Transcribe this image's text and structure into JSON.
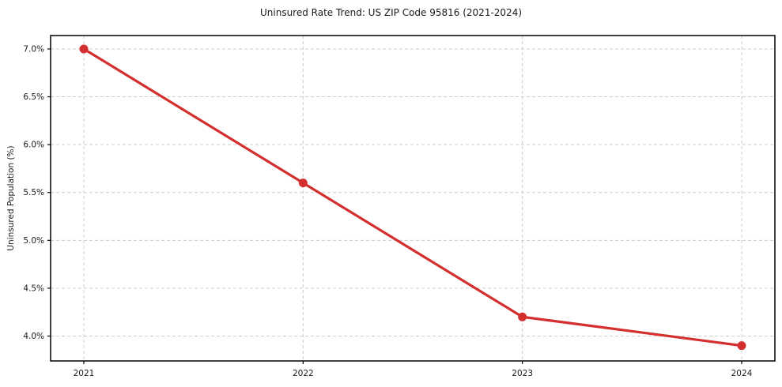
{
  "page": {
    "background": "#ffffff"
  },
  "chart_data": {
    "type": "line",
    "title": "Uninsured Rate Trend: US ZIP Code 95816 (2021-2024)",
    "xlabel": "",
    "ylabel": "Uninsured Population (%)",
    "categories": [
      "2021",
      "2022",
      "2023",
      "2024"
    ],
    "values": [
      7.0,
      5.6,
      4.2,
      3.9
    ],
    "line_color": "#d32f2f",
    "marker": "circle",
    "ylim": [
      3.74,
      7.14
    ],
    "yticks": [
      4.0,
      4.5,
      5.0,
      5.5,
      6.0,
      6.5,
      7.0
    ],
    "ytick_labels": [
      "4.0%",
      "4.5%",
      "5.0%",
      "5.5%",
      "6.0%",
      "6.5%",
      "7.0%"
    ],
    "grid": "dashed",
    "grid_color": "#cccccc",
    "axis_color": "#000000",
    "legend": "none"
  }
}
